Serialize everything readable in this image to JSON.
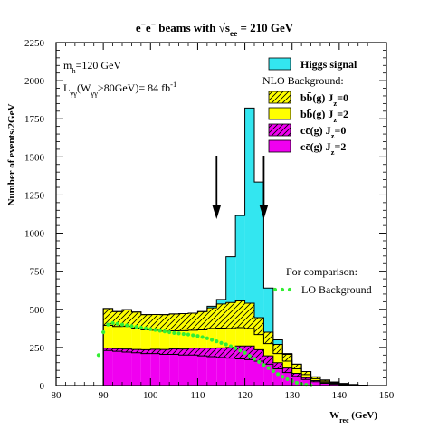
{
  "chart_data": {
    "type": "area",
    "title_segments": [
      {
        "text": "e",
        "style": "normal"
      },
      {
        "text": "−",
        "style": "sup"
      },
      {
        "text": "e",
        "style": "normal"
      },
      {
        "text": "−",
        "style": "sup"
      },
      {
        "text": " beams with ",
        "style": "normal"
      },
      {
        "text": "√s",
        "style": "normal"
      },
      {
        "text": "ee",
        "style": "sub"
      },
      {
        "text": " = 210 GeV",
        "style": "normal"
      }
    ],
    "ylabel": "Number of events/2GeV",
    "xlabel_segments": [
      {
        "text": "W",
        "style": "normal"
      },
      {
        "text": "rec",
        "style": "sub"
      },
      {
        "text": " (GeV)",
        "style": "normal"
      }
    ],
    "xlim": [
      80,
      150
    ],
    "ylim": [
      0,
      2250
    ],
    "x_ticks": [
      80,
      90,
      100,
      110,
      120,
      130,
      140,
      150
    ],
    "y_ticks": [
      0,
      250,
      500,
      750,
      1000,
      1250,
      1500,
      1750,
      2000,
      2250
    ],
    "bins": [
      88,
      90,
      92,
      94,
      96,
      98,
      100,
      102,
      104,
      106,
      108,
      110,
      112,
      114,
      116,
      118,
      120,
      122,
      124,
      126,
      128,
      130,
      132,
      134,
      136,
      138,
      140,
      142,
      144,
      146
    ],
    "bin_width": 2,
    "stack_order": [
      "ccbar_jz2",
      "ccbar_jz0",
      "bbbar_jz2",
      "bbbar_jz0",
      "higgs"
    ],
    "series": [
      {
        "key": "ccbar_jz2",
        "pattern": "solid",
        "values": [
          0,
          230,
          225,
          220,
          215,
          210,
          210,
          205,
          205,
          200,
          200,
          195,
          190,
          185,
          180,
          175,
          170,
          160,
          140,
          110,
          85,
          60,
          40,
          25,
          15,
          10,
          5,
          3,
          2,
          0
        ]
      },
      {
        "key": "ccbar_jz0",
        "pattern": "hatch",
        "values": [
          0,
          15,
          17,
          20,
          22,
          25,
          28,
          32,
          36,
          40,
          45,
          50,
          55,
          62,
          70,
          85,
          90,
          75,
          55,
          40,
          30,
          20,
          12,
          8,
          5,
          3,
          2,
          1,
          0,
          0
        ]
      },
      {
        "key": "bbbar_jz2",
        "pattern": "solid",
        "values": [
          0,
          150,
          145,
          148,
          140,
          130,
          125,
          120,
          118,
          120,
          118,
          120,
          130,
          130,
          125,
          120,
          115,
          100,
          80,
          60,
          45,
          30,
          20,
          12,
          8,
          5,
          3,
          2,
          1,
          0
        ]
      },
      {
        "key": "bbbar_jz0",
        "pattern": "hatch",
        "values": [
          0,
          110,
          98,
          110,
          105,
          100,
          103,
          108,
          111,
          112,
          112,
          120,
          135,
          158,
          170,
          175,
          165,
          110,
          75,
          60,
          45,
          30,
          20,
          12,
          8,
          5,
          3,
          1,
          0,
          0
        ]
      },
      {
        "key": "higgs",
        "pattern": "solid",
        "values": [
          0,
          0,
          0,
          0,
          0,
          0,
          0,
          0,
          0,
          0,
          0,
          0,
          10,
          30,
          300,
          560,
          1280,
          890,
          290,
          30,
          5,
          0,
          0,
          0,
          0,
          0,
          0,
          0,
          0,
          0
        ]
      }
    ],
    "lo_background": {
      "x": [
        89,
        90,
        91,
        92,
        93,
        94,
        95,
        96,
        97,
        98,
        99,
        100,
        101,
        102,
        103,
        104,
        105,
        106,
        107,
        108,
        109,
        110,
        111,
        112,
        113,
        114,
        115,
        116,
        117,
        118,
        119,
        120,
        121,
        122,
        123,
        124,
        125,
        126,
        127,
        128,
        129,
        130,
        131,
        132,
        133,
        134
      ],
      "y": [
        200,
        350,
        400,
        410,
        405,
        400,
        395,
        390,
        385,
        380,
        375,
        370,
        365,
        360,
        355,
        350,
        345,
        342,
        338,
        335,
        330,
        325,
        318,
        310,
        300,
        290,
        280,
        270,
        258,
        245,
        230,
        215,
        195,
        175,
        155,
        135,
        115,
        95,
        75,
        58,
        42,
        28,
        18,
        10,
        5,
        2
      ]
    },
    "arrows_x": [
      114,
      124
    ],
    "colors": {
      "higgs": "#33e6f0",
      "bbbar": "#ffff00",
      "ccbar": "#f000f0",
      "lo": "#33ee33"
    },
    "annotations": [
      [
        {
          "text": "m",
          "style": "normal"
        },
        {
          "text": "h",
          "style": "sub"
        },
        {
          "text": "=120 GeV",
          "style": "normal"
        }
      ],
      [
        {
          "text": "L",
          "style": "normal"
        },
        {
          "text": "γγ",
          "style": "sub"
        },
        {
          "text": "(W",
          "style": "normal"
        },
        {
          "text": "γγ",
          "style": "sub"
        },
        {
          "text": ">80GeV)= 84 fb",
          "style": "normal"
        },
        {
          "text": "-1",
          "style": "sup"
        }
      ]
    ],
    "legend": {
      "higgs": [
        {
          "text": "Higgs signal",
          "style": "normal"
        }
      ],
      "nlo_header": "NLO Background:",
      "bbbar_jz0": [
        {
          "text": "bb̄(g)  J",
          "style": "normal"
        },
        {
          "text": "z",
          "style": "sub"
        },
        {
          "text": "=0",
          "style": "normal"
        }
      ],
      "bbbar_jz2": [
        {
          "text": "bb̄(g)  J",
          "style": "normal"
        },
        {
          "text": "z",
          "style": "sub"
        },
        {
          "text": "=2",
          "style": "normal"
        }
      ],
      "ccbar_jz0": [
        {
          "text": "cc̄(g)  J",
          "style": "normal"
        },
        {
          "text": "z",
          "style": "sub"
        },
        {
          "text": "=0",
          "style": "normal"
        }
      ],
      "ccbar_jz2": [
        {
          "text": "cc̄(g)  J",
          "style": "normal"
        },
        {
          "text": "z",
          "style": "sub"
        },
        {
          "text": "=2",
          "style": "normal"
        }
      ],
      "comparison_header": "For comparison:",
      "lo": [
        {
          "text": "LO Background",
          "style": "normal"
        }
      ]
    }
  }
}
